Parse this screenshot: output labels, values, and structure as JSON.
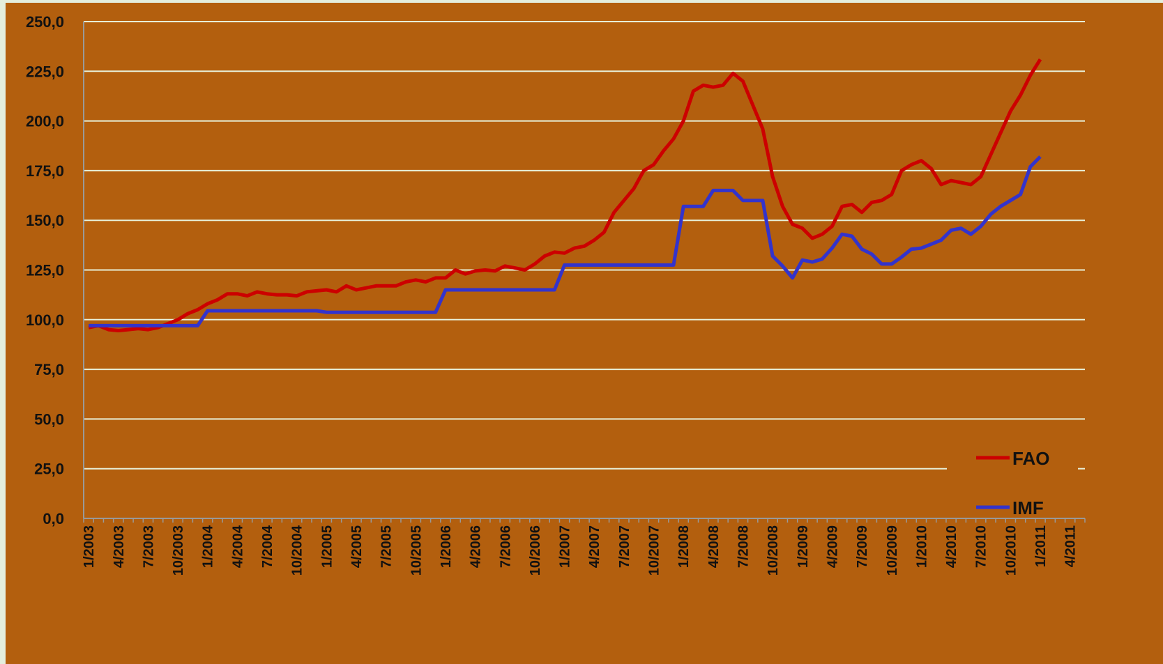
{
  "chart_data": {
    "type": "line",
    "categories": [
      "1/2003",
      null,
      null,
      "4/2003",
      null,
      null,
      "7/2003",
      null,
      null,
      "10/2003",
      null,
      null,
      "1/2004",
      null,
      null,
      "4/2004",
      null,
      null,
      "7/2004",
      null,
      null,
      "10/2004",
      null,
      null,
      "1/2005",
      null,
      null,
      "4/2005",
      null,
      null,
      "7/2005",
      null,
      null,
      "10/2005",
      null,
      null,
      "1/2006",
      null,
      null,
      "4/2006",
      null,
      null,
      "7/2006",
      null,
      null,
      "10/2006",
      null,
      null,
      "1/2007",
      null,
      null,
      "4/2007",
      null,
      null,
      "7/2007",
      null,
      null,
      "10/2007",
      null,
      null,
      "1/2008",
      null,
      null,
      "4/2008",
      null,
      null,
      "7/2008",
      null,
      null,
      "10/2008",
      null,
      null,
      "1/2009",
      null,
      null,
      "4/2009",
      null,
      null,
      "7/2009",
      null,
      null,
      "10/2009",
      null,
      null,
      "1/2010",
      null,
      null,
      "4/2010",
      null,
      null,
      "7/2010",
      null,
      null,
      "10/2010",
      null,
      null,
      "1/2011",
      null,
      null,
      "4/2011",
      null
    ],
    "series": [
      {
        "name": "FAO",
        "color": "#cc0000",
        "values": [
          96,
          97,
          95,
          94.5,
          95,
          95.5,
          95,
          96,
          98,
          100,
          103,
          105,
          108,
          110,
          113,
          113,
          112,
          114,
          113,
          112.5,
          112.5,
          112,
          114,
          114.5,
          115,
          114,
          117,
          115,
          116,
          117,
          117,
          117,
          119,
          120,
          119,
          121,
          121,
          125,
          123,
          124.5,
          125,
          124.5,
          127,
          126,
          125,
          128,
          132,
          134,
          133.5,
          136,
          137,
          140,
          144,
          154,
          160,
          166,
          175,
          178,
          185,
          191,
          200,
          215,
          218,
          217,
          218,
          224,
          220,
          208,
          196,
          172,
          157,
          148,
          146,
          141,
          143,
          147,
          157,
          158,
          154,
          159,
          160,
          163,
          175,
          178,
          180,
          176,
          168,
          170,
          169,
          168,
          172,
          183,
          194,
          205,
          213,
          223,
          231,
          null,
          null,
          null,
          null
        ]
      },
      {
        "name": "IMF",
        "color": "#3333cc",
        "values": [
          97,
          97,
          97,
          97,
          97,
          97,
          97,
          97,
          97,
          97,
          97,
          97,
          104.5,
          104.5,
          104.5,
          104.5,
          104.5,
          104.5,
          104.5,
          104.5,
          104.5,
          104.5,
          104.5,
          104.5,
          103.7,
          103.7,
          103.7,
          103.7,
          103.7,
          103.7,
          103.7,
          103.7,
          103.7,
          103.7,
          103.7,
          103.7,
          115,
          115,
          115,
          115,
          115,
          115,
          115,
          115,
          115,
          115,
          115,
          115,
          127.5,
          127.5,
          127.5,
          127.5,
          127.5,
          127.5,
          127.5,
          127.5,
          127.5,
          127.5,
          127.5,
          127.5,
          157,
          157,
          157,
          165,
          165,
          165,
          160,
          160,
          160,
          132,
          127,
          121,
          130,
          129,
          130.5,
          136,
          143,
          142,
          135.5,
          133,
          128,
          128,
          131.5,
          135.5,
          136,
          138,
          140,
          145,
          146,
          143,
          147,
          153,
          157,
          160,
          163,
          177,
          182,
          null,
          null,
          null,
          null
        ]
      }
    ],
    "ylim": [
      0,
      250
    ],
    "yticks": [
      {
        "value": 0,
        "label": "0,0"
      },
      {
        "value": 25,
        "label": "25,0"
      },
      {
        "value": 50,
        "label": "50,0"
      },
      {
        "value": 75,
        "label": "75,0"
      },
      {
        "value": 100,
        "label": "100,0"
      },
      {
        "value": 125,
        "label": "125,0"
      },
      {
        "value": 150,
        "label": "150,0"
      },
      {
        "value": 175,
        "label": "175,0"
      },
      {
        "value": 200,
        "label": "200,0"
      },
      {
        "value": 225,
        "label": "225,0"
      },
      {
        "value": 250,
        "label": "250,0"
      }
    ],
    "grid": true,
    "legend": "bottom-right"
  }
}
